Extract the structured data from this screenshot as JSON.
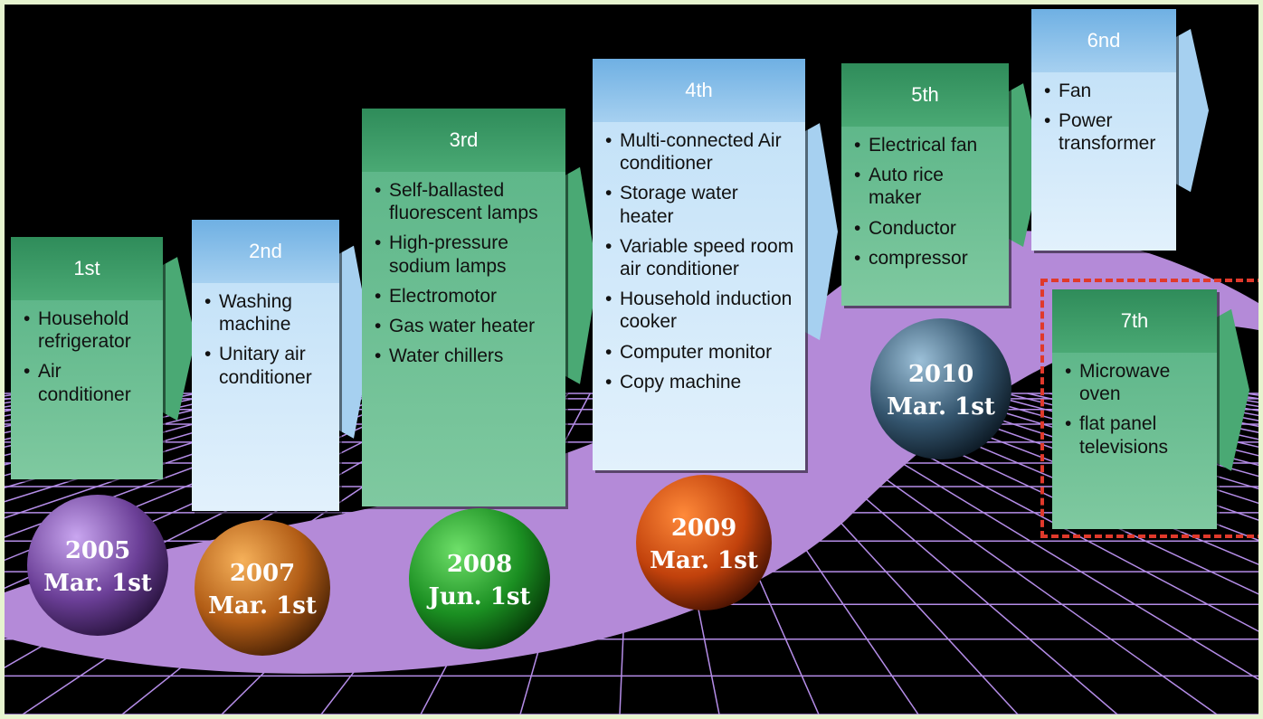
{
  "stages": [
    {
      "title": "1st",
      "items": [
        "Household refrigerator",
        "Air conditioner"
      ],
      "year": "2005",
      "date": "Mar. 1st"
    },
    {
      "title": "2nd",
      "items": [
        "Washing machine",
        "Unitary air conditioner"
      ],
      "year": "2007",
      "date": "Mar. 1st"
    },
    {
      "title": "3rd",
      "items": [
        "Self-ballasted fluorescent lamps",
        "High-pressure sodium lamps",
        "Electromotor",
        "Gas water heater",
        "Water chillers"
      ],
      "year": "2008",
      "date": "Jun. 1st"
    },
    {
      "title": "4th",
      "items": [
        "Multi-connected Air conditioner",
        "Storage water heater",
        "Variable speed room air conditioner",
        "Household induction cooker",
        "Computer monitor",
        "Copy machine"
      ],
      "year": "2009",
      "date": "Mar. 1st"
    },
    {
      "title": "5th",
      "items": [
        "Electrical fan",
        "Auto rice maker",
        "Conductor",
        "compressor"
      ],
      "year": "2010",
      "date": "Mar. 1st"
    },
    {
      "title": "6nd",
      "items": [
        "Fan",
        "Power transformer"
      ]
    },
    {
      "title": "7th",
      "items": [
        "Microwave oven",
        "flat panel televisions"
      ]
    }
  ]
}
